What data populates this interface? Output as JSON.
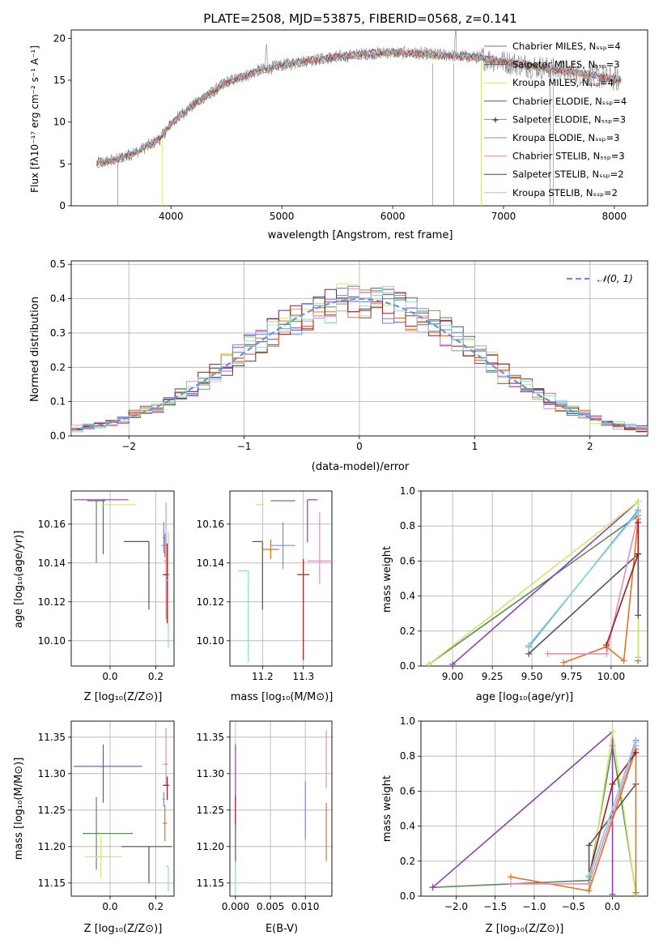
{
  "colors": {
    "s0": "#5b8c5a",
    "s1": "#8e3fb6",
    "s2": "#cde86a",
    "s3": "#555555",
    "s4": "#e2731e",
    "s5": "#6d8fe0",
    "s6": "#e58cc0",
    "s7": "#9e1b1b",
    "s8": "#86dcd6",
    "grey": "#808080",
    "gauss": "#6d8fe0",
    "grid": "#b0b0b0"
  },
  "chart_data": [
    {
      "id": "spectrum",
      "type": "line",
      "title": "PLATE=2508, MJD=53875, FIBERID=0568, z=0.141",
      "xlabel": "wavelength [Angstrom, rest frame]",
      "ylabel": "Flux [fλ10⁻¹⁷ erg cm⁻² s⁻¹ A⁻¹]",
      "xlim": [
        3100,
        8300
      ],
      "ylim": [
        0,
        21
      ],
      "xticks": [
        4000,
        5000,
        6000,
        7000,
        8000
      ],
      "yticks": [
        0,
        5,
        10,
        15,
        20
      ],
      "grid": false,
      "legend": "top-right",
      "legend_entries": [
        "Chabrier MILES, Nₛₛₚ=4",
        "Salpeter MILES, Nₛₛₚ=3",
        "Kroupa MILES, Nₛₛₚ=4",
        "Chabrier ELODIE, Nₛₛₚ=4",
        "Salpeter ELODIE, Nₛₛₚ=3",
        "Kroupa ELODIE, Nₛₛₚ=3",
        "Chabrier STELIB, Nₛₛₚ=3",
        "Salpeter STELIB, Nₛₛₚ=2",
        "Kroupa STELIB, Nₛₛₚ=2"
      ],
      "continuum_x": [
        3300,
        3500,
        3700,
        3900,
        4000,
        4100,
        4200,
        4300,
        4400,
        4500,
        4600,
        4800,
        5000,
        5200,
        5500,
        5800,
        6000,
        6200,
        6500,
        6800,
        7000,
        7200,
        7500,
        7800,
        8050
      ],
      "continuum_y": [
        5.0,
        5.5,
        6.5,
        8.0,
        9.8,
        11.0,
        12.0,
        13.0,
        13.8,
        14.8,
        15.2,
        16.2,
        16.8,
        17.3,
        17.8,
        18.2,
        18.3,
        18.2,
        18.0,
        17.7,
        17.2,
        16.8,
        16.2,
        15.6,
        15.0
      ]
    },
    {
      "id": "residuals",
      "type": "line",
      "xlabel": "(data-model)/error",
      "ylabel": "Normed distribution",
      "xlim": [
        -2.5,
        2.5
      ],
      "ylim": [
        0,
        0.51
      ],
      "xticks": [
        -2,
        -1,
        0,
        1,
        2
      ],
      "yticks": [
        0.0,
        0.1,
        0.2,
        0.3,
        0.4,
        0.5
      ],
      "grid": true,
      "legend": "top-right",
      "legend_entries": [
        "𝒩(0, 1)"
      ]
    },
    {
      "id": "age-vs-Z",
      "type": "scatter",
      "xlabel": "Z [log₁₀(Z/Z⊙)]",
      "ylabel": "age  [log₁₀(age/yr)]",
      "xlim": [
        -0.17,
        0.28
      ],
      "ylim": [
        10.087,
        10.177
      ],
      "xticks": [
        0.0,
        0.2
      ],
      "yticks": [
        10.1,
        10.12,
        10.14,
        10.16
      ],
      "grid": true,
      "points": [
        {
          "x": -0.06,
          "y": 10.172,
          "xerr": [
            0.04,
            0.04
          ],
          "yerr": [
            0.032,
            0.0
          ]
        },
        {
          "x": -0.03,
          "y": 10.1725,
          "xerr": [
            0.13,
            0.11
          ],
          "yerr": [
            0.028,
            0.0
          ]
        },
        {
          "x": -0.04,
          "y": 10.17,
          "xerr": [
            0.0,
            0.15
          ],
          "yerr": [
            0.0,
            0.0
          ]
        },
        {
          "x": 0.17,
          "y": 10.151,
          "xerr": [
            0.11,
            0.0
          ],
          "yerr": [
            0.035,
            0.0
          ]
        },
        {
          "x": 0.24,
          "y": 10.149,
          "xerr": [
            0.015,
            0.01
          ],
          "yerr": [
            0.006,
            0.006
          ]
        },
        {
          "x": 0.235,
          "y": 10.153,
          "xerr": [
            0.005,
            0.005
          ],
          "yerr": [
            0.008,
            0.008
          ]
        },
        {
          "x": 0.245,
          "y": 10.141,
          "xerr": [
            0.01,
            0.01
          ],
          "yerr": [
            0.03,
            0.03
          ]
        },
        {
          "x": 0.25,
          "y": 10.134,
          "xerr": [
            0.02,
            0.01
          ],
          "yerr": [
            0.025,
            0.016
          ]
        },
        {
          "x": 0.255,
          "y": 10.131,
          "xerr": [
            0.01,
            0.0
          ],
          "yerr": [
            0.035,
            0.025
          ]
        }
      ]
    },
    {
      "id": "age-vs-mass",
      "type": "scatter",
      "xlabel": "mass [log₁₀(M/M⊙)]",
      "ylabel": "",
      "xlim": [
        11.12,
        11.37
      ],
      "ylim": [
        10.087,
        10.177
      ],
      "xticks": [
        11.2,
        11.3
      ],
      "yticks": [
        10.1,
        10.12,
        10.14,
        10.16
      ],
      "grid": true,
      "points": [
        {
          "x": 11.23,
          "y": 10.172,
          "xerr": [
            0.01,
            0.05
          ],
          "yerr": [
            0.0,
            0.0
          ]
        },
        {
          "x": 11.31,
          "y": 10.1725,
          "xerr": [
            0.0,
            0.025
          ],
          "yerr": [
            0.022,
            0.0
          ]
        },
        {
          "x": 11.19,
          "y": 10.17,
          "xerr": [
            0.006,
            0.014
          ],
          "yerr": [
            0.0,
            0.0
          ]
        },
        {
          "x": 11.2,
          "y": 10.151,
          "xerr": [
            0.025,
            0.0
          ],
          "yerr": [
            0.035,
            0.0
          ]
        },
        {
          "x": 11.22,
          "y": 10.147,
          "xerr": [
            0.021,
            0.021
          ],
          "yerr": [
            0.005,
            0.005
          ]
        },
        {
          "x": 11.25,
          "y": 10.149,
          "xerr": [
            0.03,
            0.03
          ],
          "yerr": [
            0.012,
            0.012
          ]
        },
        {
          "x": 11.34,
          "y": 10.141,
          "xerr": [
            0.03,
            0.03
          ],
          "yerr": [
            0.012,
            0.025
          ]
        },
        {
          "x": 11.3,
          "y": 10.134,
          "xerr": [
            0.015,
            0.015
          ],
          "yerr": [
            0.044,
            0.008
          ]
        },
        {
          "x": 11.165,
          "y": 10.136,
          "xerr": [
            0.025,
            0.0
          ],
          "yerr": [
            0.047,
            0.0
          ]
        }
      ]
    },
    {
      "id": "weight-vs-age",
      "type": "line",
      "xlabel": "age  [log₁₀(age/yr)]",
      "ylabel": "mass weight",
      "xlim": [
        8.8,
        10.23
      ],
      "ylim": [
        0.0,
        1.0
      ],
      "xticks": [
        9.0,
        9.25,
        9.5,
        9.75,
        10.0
      ],
      "yticks": [
        0.0,
        0.2,
        0.4,
        0.6,
        0.8,
        1.0
      ],
      "grid": true,
      "series": [
        {
          "x": [
            8.85,
            10.17,
            10.17
          ],
          "y": [
            0.01,
            0.86,
            0.03
          ]
        },
        {
          "x": [
            9.0,
            10.17,
            10.17
          ],
          "y": [
            0.01,
            0.94,
            0.05
          ]
        },
        {
          "x": [
            8.85,
            10.17,
            10.17
          ],
          "y": [
            0.01,
            0.94,
            0.05
          ]
        },
        {
          "x": [
            9.48,
            10.17,
            10.17
          ],
          "y": [
            0.07,
            0.64,
            0.29
          ]
        },
        {
          "x": [
            9.7,
            9.97,
            10.08,
            10.17
          ],
          "y": [
            0.02,
            0.11,
            0.03,
            0.84
          ]
        },
        {
          "x": [
            9.48,
            10.17
          ],
          "y": [
            0.11,
            0.89
          ]
        },
        {
          "x": [
            9.6,
            9.97,
            10.17
          ],
          "y": [
            0.07,
            0.07,
            0.86
          ]
        },
        {
          "x": [
            9.97,
            10.17,
            10.17
          ],
          "y": [
            0.12,
            0.64,
            0.82
          ]
        },
        {
          "x": [
            9.48,
            10.17
          ],
          "y": [
            0.12,
            0.88
          ]
        }
      ]
    },
    {
      "id": "mass-vs-Z",
      "type": "scatter",
      "xlabel": "Z [log₁₀(Z/Z⊙)]",
      "ylabel": "mass [log₁₀(M/M⊙)]",
      "xlim": [
        -0.17,
        0.28
      ],
      "ylim": [
        11.132,
        11.372
      ],
      "xticks": [
        0.0,
        0.2
      ],
      "yticks": [
        11.15,
        11.2,
        11.25,
        11.3,
        11.35
      ],
      "grid": true,
      "points": [
        {
          "x": -0.06,
          "y": 11.218,
          "xerr": [
            0.06,
            0.16
          ],
          "yerr": [
            0.05,
            0.05
          ]
        },
        {
          "x": -0.03,
          "y": 11.31,
          "xerr": [
            0.13,
            0.17
          ],
          "yerr": [
            0.05,
            0.03
          ]
        },
        {
          "x": -0.04,
          "y": 11.186,
          "xerr": [
            0.07,
            0.09
          ],
          "yerr": [
            0.03,
            0.03
          ]
        },
        {
          "x": 0.17,
          "y": 11.2,
          "xerr": [
            0.12,
            0.1
          ],
          "yerr": [
            0.05,
            0.0
          ]
        },
        {
          "x": 0.24,
          "y": 11.232,
          "xerr": [
            0.01,
            0.01
          ],
          "yerr": [
            0.025,
            0.025
          ]
        },
        {
          "x": 0.235,
          "y": 11.265,
          "xerr": [
            0.005,
            0.005
          ],
          "yerr": [
            0.01,
            0.01
          ]
        },
        {
          "x": 0.245,
          "y": 11.313,
          "xerr": [
            0.015,
            0.01
          ],
          "yerr": [
            0.03,
            0.05
          ]
        },
        {
          "x": 0.25,
          "y": 11.284,
          "xerr": [
            0.02,
            0.01
          ],
          "yerr": [
            0.02,
            0.012
          ]
        },
        {
          "x": 0.255,
          "y": 11.173,
          "xerr": [
            0.01,
            0.0
          ],
          "yerr": [
            0.035,
            0.0
          ]
        }
      ]
    },
    {
      "id": "mass-vs-EBV",
      "type": "scatter",
      "xlabel": "E(B-V)",
      "ylabel": "",
      "xlim": [
        -0.0008,
        0.0138
      ],
      "ylim": [
        11.132,
        11.372
      ],
      "xticks": [
        0.0,
        0.005,
        0.01
      ],
      "yticks": [
        11.15,
        11.2,
        11.25,
        11.3,
        11.35
      ],
      "grid": true,
      "points": [
        {
          "x": 0.0,
          "y": 11.29,
          "xerr": [
            0,
            0
          ],
          "yerr": [
            0.05,
            0.05
          ]
        },
        {
          "x": 0.0,
          "y": 11.2,
          "xerr": [
            0,
            0
          ],
          "yerr": [
            0.025,
            0.045
          ]
        },
        {
          "x": 0.0,
          "y": 11.16,
          "xerr": [
            0,
            0
          ],
          "yerr": [
            0.02,
            0.02
          ]
        },
        {
          "x": 0.0,
          "y": 11.25,
          "xerr": [
            0,
            0
          ],
          "yerr": [
            0.02,
            0.02
          ]
        },
        {
          "x": 0.013,
          "y": 11.22,
          "xerr": [
            0,
            0
          ],
          "yerr": [
            0.04,
            0.04
          ]
        },
        {
          "x": 0.01,
          "y": 11.25,
          "xerr": [
            0,
            0
          ],
          "yerr": [
            0.04,
            0.04
          ]
        },
        {
          "x": 0.013,
          "y": 11.32,
          "xerr": [
            0,
            0
          ],
          "yerr": [
            0.04,
            0.04
          ]
        }
      ]
    },
    {
      "id": "weight-vs-Z",
      "type": "line",
      "xlabel": "Z [log₁₀(Z/Z⊙)]",
      "ylabel": "mass weight",
      "xlim": [
        -2.45,
        0.45
      ],
      "ylim": [
        0.0,
        1.0
      ],
      "xticks": [
        -2.0,
        -1.5,
        -1.0,
        -0.5,
        0.0
      ],
      "yticks": [
        0.0,
        0.2,
        0.4,
        0.6,
        0.8,
        1.0
      ],
      "grid": true,
      "series": [
        {
          "x": [
            -2.3,
            -0.3,
            0.0,
            0.3
          ],
          "y": [
            0.05,
            0.09,
            0.86,
            0.02
          ]
        },
        {
          "x": [
            -2.3,
            0.0,
            0.0
          ],
          "y": [
            0.05,
            0.94,
            0.01
          ]
        },
        {
          "x": [
            -0.3,
            0.0,
            0.3
          ],
          "y": [
            0.04,
            0.94,
            0.01
          ]
        },
        {
          "x": [
            -0.3,
            -0.3,
            0.3
          ],
          "y": [
            0.07,
            0.29,
            0.64
          ]
        },
        {
          "x": [
            -1.3,
            -0.3,
            0.3,
            0.3
          ],
          "y": [
            0.11,
            0.03,
            0.84,
            0.02
          ]
        },
        {
          "x": [
            -0.3,
            0.3
          ],
          "y": [
            0.11,
            0.89
          ]
        },
        {
          "x": [
            -1.3,
            -0.3,
            0.3
          ],
          "y": [
            0.07,
            0.07,
            0.86
          ]
        },
        {
          "x": [
            -0.3,
            0.0,
            0.3
          ],
          "y": [
            0.12,
            0.64,
            0.82
          ]
        },
        {
          "x": [
            -0.3,
            0.3
          ],
          "y": [
            0.12,
            0.88
          ]
        }
      ]
    }
  ]
}
